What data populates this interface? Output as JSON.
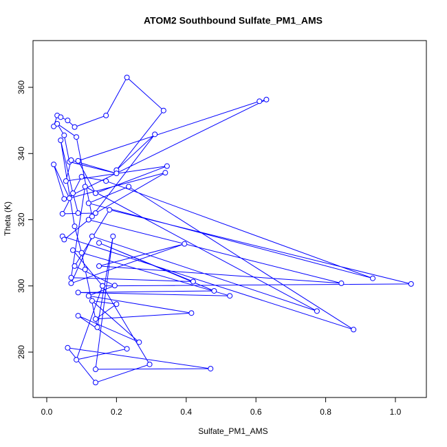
{
  "chart_data": {
    "type": "line",
    "title": "ATOM2 Southbound Sulfate_PM1_AMS",
    "x_label": "Sulfate_PM1_AMS",
    "y_label": "Theta (K)",
    "x": [
      0.02,
      0.03,
      0.04,
      0.06,
      0.08,
      0.17,
      0.23,
      0.335,
      0.2,
      0.31,
      0.13,
      0.085,
      0.03,
      0.05,
      0.065,
      0.2,
      0.07,
      0.055,
      0.345,
      0.14,
      0.09,
      0.61,
      0.63,
      0.05,
      0.02,
      0.065,
      0.34,
      0.14,
      0.045,
      0.1,
      0.17,
      0.935,
      0.12,
      0.235,
      0.88,
      0.045,
      0.05,
      0.12,
      0.845,
      0.15,
      0.395,
      0.07,
      0.13,
      0.775,
      0.11,
      0.07,
      0.42,
      0.15,
      0.48,
      0.09,
      0.525,
      0.075,
      0.16,
      1.045,
      0.18,
      0.08,
      0.195,
      0.12,
      0.415,
      0.14,
      0.2,
      0.13,
      0.265,
      0.09,
      0.23,
      0.085,
      0.16,
      0.295,
      0.14,
      0.06,
      0.47,
      0.14,
      0.19,
      0.145,
      0.11,
      0.1,
      0.08,
      0.04,
      0.075,
      0.09
    ],
    "series": [
      {
        "name": "Sulfate_PM1_AMS",
        "color": "#0000ff",
        "values": [
          348.2,
          351.5,
          351.0,
          350.0,
          348.0,
          351.5,
          363.0,
          353.0,
          335.0,
          345.8,
          321.0,
          345.0,
          349.0,
          345.5,
          337.5,
          334.0,
          338.0,
          331.7,
          336.2,
          328.0,
          337.8,
          355.8,
          356.3,
          326.3,
          336.7,
          326.5,
          334.2,
          322.0,
          321.8,
          333.0,
          331.7,
          302.3,
          325.0,
          330.0,
          286.8,
          315.0,
          314.0,
          320.0,
          300.8,
          306.0,
          312.7,
          300.8,
          315.0,
          292.4,
          330.0,
          302.5,
          301.3,
          313.0,
          298.5,
          298.0,
          297.0,
          310.8,
          300.0,
          300.6,
          323.0,
          306.0,
          300.1,
          297.0,
          291.8,
          290.0,
          294.5,
          295.5,
          283.0,
          291.0,
          281.0,
          277.7,
          300.0,
          276.3,
          270.8,
          281.3,
          275.0,
          274.8,
          315.0,
          287.5,
          305.0,
          310.0,
          318.0,
          344.0,
          328.0,
          322.0
        ]
      }
    ],
    "xlim": [
      -0.0394,
      1.0888
    ],
    "ylim": [
      266.29,
      374.13
    ],
    "xticks": [
      {
        "value": 0,
        "label": "0.0"
      },
      0.2,
      0.4,
      0.6,
      0.8,
      {
        "value": 1,
        "label": "1.0"
      }
    ],
    "yticks": [
      280,
      300,
      320,
      340,
      360
    ]
  }
}
